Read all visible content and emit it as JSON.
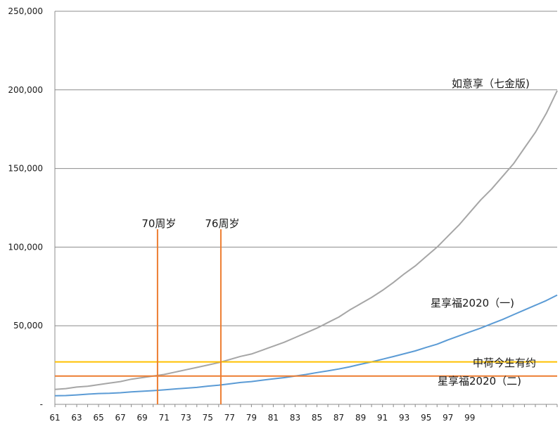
{
  "chart_data": {
    "type": "line",
    "title": "",
    "xlabel": "",
    "ylabel": "",
    "ylim": [
      0,
      250000
    ],
    "xlim": [
      61,
      107
    ],
    "grid": true,
    "y_ticks": [
      0,
      50000,
      100000,
      150000,
      200000,
      250000
    ],
    "y_tick_labels": [
      "-",
      "50,000",
      "100,000",
      "150,000",
      "200,000",
      "250,000"
    ],
    "x_ticks": [
      61,
      63,
      65,
      67,
      69,
      71,
      73,
      75,
      77,
      79,
      81,
      83,
      85,
      87,
      89,
      91,
      93,
      95,
      97,
      99
    ],
    "series": [
      {
        "name": "如意享（七金版)",
        "color": "#a6a6a6",
        "x": [
          61,
          62,
          63,
          64,
          65,
          66,
          67,
          68,
          69,
          70,
          71,
          72,
          73,
          74,
          75,
          76,
          77,
          78,
          79,
          80,
          81,
          82,
          83,
          84,
          85,
          86,
          87,
          88,
          89,
          90,
          91,
          92,
          93,
          94,
          95,
          96,
          97,
          98,
          99,
          100,
          101,
          102,
          103,
          104,
          105,
          106,
          107
        ],
        "values": [
          9500,
          10000,
          11000,
          11500,
          12500,
          13500,
          14500,
          16000,
          17000,
          18000,
          19000,
          20500,
          22000,
          23500,
          25000,
          26500,
          28500,
          30500,
          32000,
          34500,
          37000,
          39500,
          42500,
          45500,
          48500,
          52000,
          55500,
          60000,
          64000,
          68000,
          72500,
          77500,
          83000,
          88000,
          94000,
          100000,
          107000,
          114000,
          122000,
          130000,
          137000,
          145000,
          153000,
          163000,
          173000,
          185000,
          199500
        ]
      },
      {
        "name": "星享福2020（一)",
        "color": "#5b9bd5",
        "x": [
          61,
          62,
          63,
          64,
          65,
          66,
          67,
          68,
          69,
          70,
          71,
          72,
          73,
          74,
          75,
          76,
          77,
          78,
          79,
          80,
          81,
          82,
          83,
          84,
          85,
          86,
          87,
          88,
          89,
          90,
          91,
          92,
          93,
          94,
          95,
          96,
          97,
          98,
          99,
          100,
          101,
          102,
          103,
          104,
          105,
          106,
          107
        ],
        "values": [
          5500,
          5600,
          6000,
          6500,
          6900,
          7000,
          7400,
          7900,
          8300,
          8700,
          9200,
          9800,
          10300,
          10800,
          11600,
          12200,
          13000,
          13900,
          14500,
          15400,
          16200,
          17000,
          18000,
          19000,
          20200,
          21300,
          22500,
          23900,
          25500,
          27000,
          28700,
          30400,
          32200,
          34000,
          36200,
          38300,
          41000,
          43500,
          46000,
          48500,
          51300,
          54000,
          57000,
          60000,
          63000,
          66000,
          69500
        ]
      },
      {
        "name": "中荷今生有约",
        "color": "#ffc000",
        "x": [
          61,
          107
        ],
        "values": [
          27000,
          27000
        ]
      },
      {
        "name": "星享福2020（二)",
        "color": "#ed7d31",
        "x": [
          61,
          107
        ],
        "values": [
          18000,
          18000
        ]
      }
    ],
    "markers": [
      {
        "label": "70周岁",
        "x": 70.4,
        "color": "#ed7d31"
      },
      {
        "label": "76周岁",
        "x": 76.2,
        "color": "#ed7d31"
      }
    ]
  }
}
